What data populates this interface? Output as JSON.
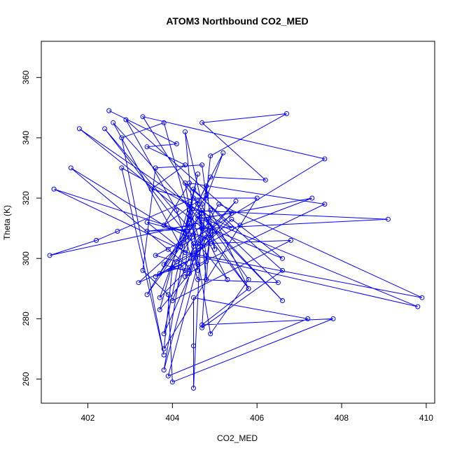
{
  "chart_data": {
    "type": "line",
    "title": "ATOM3 Northbound CO2_MED",
    "xlabel": "CO2_MED",
    "ylabel": "Theta (K)",
    "xlim": [
      400.9,
      410.2
    ],
    "ylim": [
      252,
      372
    ],
    "xticks": [
      402,
      404,
      406,
      408,
      410
    ],
    "yticks": [
      260,
      280,
      300,
      320,
      340,
      360
    ],
    "grid": false,
    "line_color": "#0000ff",
    "marker": "open-circle",
    "series": [
      {
        "name": "",
        "points": [
          [
            402.5,
            349.0
          ],
          [
            404.1,
            338.0
          ],
          [
            403.4,
            337.0
          ],
          [
            404.3,
            331.0
          ],
          [
            403.5,
            323.0
          ],
          [
            404.6,
            319.0
          ],
          [
            403.8,
            311.0
          ],
          [
            404.4,
            307.0
          ],
          [
            403.6,
            301.0
          ],
          [
            404.1,
            299.0
          ],
          [
            405.6,
            311.0
          ],
          [
            407.3,
            320.0
          ],
          [
            404.6,
            313.0
          ],
          [
            403.7,
            295.0
          ],
          [
            404.2,
            297.0
          ],
          [
            405.4,
            313.0
          ],
          [
            406.6,
            300.0
          ],
          [
            404.7,
            311.0
          ],
          [
            403.2,
            292.0
          ],
          [
            404.5,
            300.0
          ],
          [
            403.6,
            294.0
          ],
          [
            404.9,
            305.0
          ],
          [
            406.8,
            306.0
          ],
          [
            404.0,
            286.0
          ],
          [
            404.5,
            304.0
          ],
          [
            405.1,
            318.0
          ],
          [
            409.9,
            287.0
          ],
          [
            404.3,
            302.0
          ],
          [
            403.4,
            312.0
          ],
          [
            404.8,
            307.0
          ],
          [
            405.3,
            293.0
          ],
          [
            404.6,
            305.0
          ],
          [
            405.0,
            309.0
          ],
          [
            403.3,
            347.0
          ],
          [
            407.6,
            333.0
          ],
          [
            404.2,
            304.0
          ],
          [
            403.4,
            288.0
          ],
          [
            404.8,
            321.0
          ],
          [
            404.9,
            334.0
          ],
          [
            406.7,
            348.0
          ],
          [
            404.7,
            345.0
          ],
          [
            406.2,
            326.0
          ],
          [
            404.9,
            327.0
          ],
          [
            404.4,
            313.0
          ],
          [
            405.2,
            335.0
          ],
          [
            404.8,
            320.0
          ],
          [
            404.7,
            331.0
          ],
          [
            403.6,
            330.0
          ],
          [
            403.3,
            296.0
          ],
          [
            403.9,
            288.0
          ],
          [
            404.0,
            259.0
          ],
          [
            407.8,
            280.0
          ],
          [
            404.7,
            278.0
          ],
          [
            405.8,
            290.0
          ],
          [
            404.6,
            314.0
          ],
          [
            409.8,
            284.0
          ],
          [
            404.5,
            301.0
          ],
          [
            401.2,
            323.0
          ],
          [
            404.5,
            308.0
          ],
          [
            404.0,
            297.0
          ],
          [
            403.8,
            298.0
          ],
          [
            404.7,
            315.0
          ],
          [
            401.8,
            343.0
          ],
          [
            404.9,
            308.0
          ],
          [
            404.8,
            299.0
          ],
          [
            404.3,
            294.0
          ],
          [
            404.6,
            302.0
          ],
          [
            405.4,
            315.0
          ],
          [
            402.9,
            346.0
          ],
          [
            404.1,
            316.0
          ],
          [
            404.6,
            293.0
          ],
          [
            406.5,
            292.0
          ],
          [
            404.7,
            316.0
          ],
          [
            404.5,
            257.0
          ],
          [
            404.5,
            271.0
          ],
          [
            404.5,
            287.0
          ],
          [
            407.2,
            280.0
          ],
          [
            403.9,
            261.0
          ],
          [
            404.6,
            298.0
          ],
          [
            407.6,
            318.0
          ],
          [
            404.4,
            325.0
          ],
          [
            403.8,
            311.0
          ],
          [
            401.6,
            330.0
          ],
          [
            403.9,
            303.0
          ],
          [
            404.4,
            297.0
          ],
          [
            403.7,
            287.0
          ],
          [
            404.4,
            314.0
          ],
          [
            403.8,
            263.0
          ],
          [
            404.7,
            310.0
          ],
          [
            405.8,
            290.0
          ],
          [
            404.9,
            316.0
          ],
          [
            404.8,
            307.0
          ],
          [
            403.8,
            275.0
          ],
          [
            404.6,
            328.0
          ],
          [
            404.2,
            304.0
          ],
          [
            402.6,
            345.0
          ],
          [
            404.7,
            312.0
          ],
          [
            401.1,
            301.0
          ],
          [
            402.2,
            306.0
          ],
          [
            402.7,
            309.0
          ],
          [
            404.5,
            320.0
          ],
          [
            406.0,
            320.0
          ],
          [
            403.8,
            270.0
          ],
          [
            404.0,
            297.0
          ],
          [
            404.3,
            296.0
          ],
          [
            404.5,
            323.0
          ],
          [
            405.4,
            310.0
          ],
          [
            402.8,
            330.0
          ],
          [
            403.8,
            268.0
          ],
          [
            402.8,
            340.0
          ],
          [
            403.8,
            345.0
          ],
          [
            404.6,
            304.0
          ],
          [
            405.5,
            319.0
          ],
          [
            404.9,
            310.0
          ],
          [
            404.8,
            293.0
          ],
          [
            404.6,
            318.0
          ],
          [
            404.8,
            301.0
          ],
          [
            404.7,
            277.0
          ],
          [
            406.6,
            296.0
          ],
          [
            404.3,
            325.0
          ],
          [
            404.9,
            275.0
          ],
          [
            405.8,
            293.0
          ],
          [
            404.8,
            313.0
          ],
          [
            406.6,
            286.0
          ],
          [
            404.4,
            318.0
          ],
          [
            403.7,
            283.0
          ],
          [
            404.4,
            295.0
          ],
          [
            404.5,
            305.0
          ],
          [
            402.4,
            343.0
          ],
          [
            404.4,
            310.0
          ],
          [
            404.6,
            296.0
          ],
          [
            404.3,
            342.0
          ],
          [
            404.7,
            318.0
          ],
          [
            405.0,
            303.0
          ],
          [
            404.8,
            324.0
          ],
          [
            404.7,
            304.0
          ],
          [
            404.4,
            316.0
          ],
          [
            409.1,
            313.0
          ],
          [
            403.4,
            309.0
          ],
          [
            404.5,
            311.0
          ]
        ]
      }
    ]
  }
}
